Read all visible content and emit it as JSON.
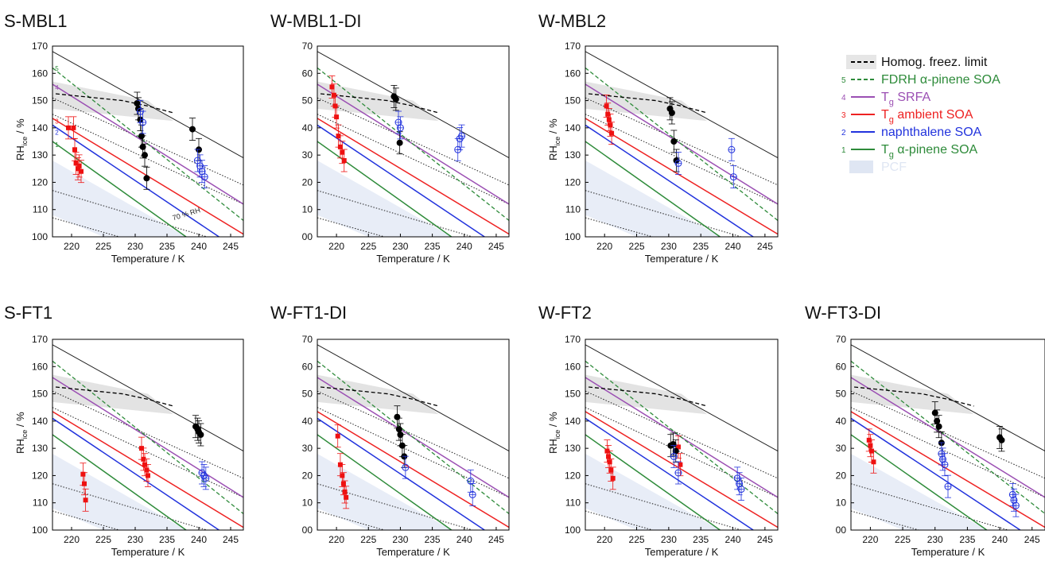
{
  "chart_data": [
    {
      "type": "scatter",
      "panel_title": "S-MBL1",
      "y_tick_labels": [
        "100",
        "110",
        "120",
        "130",
        "140",
        "150",
        "160",
        "170"
      ],
      "xlabel": "Temperature / K",
      "ylabel": "RH_ice / %",
      "xlim": [
        217,
        247
      ],
      "ylim": [
        100,
        170
      ],
      "x_ticks": [
        220,
        225,
        230,
        235,
        240,
        245
      ],
      "annotation": "70 % RH",
      "series": [
        {
          "name": "ambient SOA",
          "x": [
            219.5,
            220.3,
            220.5,
            220.7,
            221.0,
            221.2,
            221.5
          ],
          "y": [
            140,
            140,
            132,
            127,
            125,
            126,
            124
          ]
        },
        {
          "name": "black",
          "x": [
            230.3,
            230.5,
            230.8,
            231.0,
            231.2,
            231.5,
            231.8,
            239.0,
            240.0
          ],
          "y": [
            149,
            147,
            143,
            137,
            133,
            130,
            121.5,
            139.5,
            132
          ]
        },
        {
          "name": "naphthalene SOA",
          "x": [
            230.8,
            231.2,
            239.8,
            240.2,
            240.5,
            240.9
          ],
          "y": [
            146,
            142,
            128,
            126,
            124,
            122
          ]
        }
      ]
    },
    {
      "type": "scatter",
      "panel_title": "W-MBL1-DI",
      "y_tick_labels": [
        "00",
        "10",
        "20",
        "30",
        "40",
        "50",
        "60",
        "70"
      ],
      "xlabel": "Temperature / K",
      "ylabel": "",
      "xlim": [
        217,
        247
      ],
      "ylim": [
        100,
        170
      ],
      "x_ticks": [
        220,
        225,
        230,
        235,
        240,
        245
      ],
      "annotation": "",
      "series": [
        {
          "name": "ambient SOA",
          "x": [
            219.3,
            219.6,
            219.8,
            220.0,
            220.3,
            220.6,
            220.9,
            221.2
          ],
          "y": [
            155,
            152,
            148,
            144,
            137,
            133,
            131,
            128
          ]
        },
        {
          "name": "black",
          "x": [
            229.0,
            229.3,
            229.9
          ],
          "y": [
            151.5,
            150.5,
            134.5
          ]
        },
        {
          "name": "naphthalene SOA",
          "x": [
            229.7,
            230.0,
            239.0,
            239.3,
            239.6
          ],
          "y": [
            142,
            140,
            132,
            136,
            137
          ]
        }
      ]
    },
    {
      "type": "scatter",
      "panel_title": "W-MBL2",
      "y_tick_labels": [
        "100",
        "110",
        "120",
        "130",
        "140",
        "150",
        "160",
        "170"
      ],
      "xlabel": "Temperature / K",
      "ylabel": "RH_ice / %",
      "xlim": [
        217,
        247
      ],
      "ylim": [
        100,
        170
      ],
      "x_ticks": [
        220,
        225,
        230,
        235,
        240,
        245
      ],
      "annotation": "",
      "series": [
        {
          "name": "ambient SOA",
          "x": [
            220.3,
            220.5,
            220.7,
            220.9,
            221.1
          ],
          "y": [
            148,
            145,
            143,
            141,
            138
          ]
        },
        {
          "name": "black",
          "x": [
            230.2,
            230.5,
            230.8,
            231.2
          ],
          "y": [
            147,
            145.5,
            135,
            128
          ]
        },
        {
          "name": "naphthalene SOA",
          "x": [
            231.5,
            239.8,
            240.1
          ],
          "y": [
            127,
            132,
            122
          ]
        }
      ]
    },
    {
      "type": "scatter",
      "panel_title": "S-FT1",
      "y_tick_labels": [
        "100",
        "110",
        "120",
        "130",
        "140",
        "150",
        "160",
        "170"
      ],
      "xlabel": "Temperature / K",
      "ylabel": "RH_ice / %",
      "xlim": [
        217,
        247
      ],
      "ylim": [
        100,
        170
      ],
      "x_ticks": [
        220,
        225,
        230,
        235,
        240,
        245
      ],
      "annotation": "",
      "series": [
        {
          "name": "ambient SOA",
          "x": [
            221.8,
            222.0,
            222.2,
            231.0,
            231.3,
            231.5,
            231.8,
            232.0
          ],
          "y": [
            120.5,
            117,
            111,
            130,
            126,
            124,
            122,
            120
          ]
        },
        {
          "name": "black",
          "x": [
            239.5,
            239.8,
            240.0,
            240.3
          ],
          "y": [
            138,
            137,
            136,
            135
          ]
        },
        {
          "name": "naphthalene SOA",
          "x": [
            240.5,
            240.8,
            241.1
          ],
          "y": [
            121,
            120,
            119
          ]
        }
      ]
    },
    {
      "type": "scatter",
      "panel_title": "W-FT1-DI",
      "y_tick_labels": [
        "00",
        "10",
        "20",
        "30",
        "40",
        "50",
        "60",
        "70"
      ],
      "xlabel": "Temperature / K",
      "ylabel": "",
      "xlim": [
        217,
        247
      ],
      "ylim": [
        100,
        170
      ],
      "x_ticks": [
        220,
        225,
        230,
        235,
        240,
        245
      ],
      "annotation": "",
      "series": [
        {
          "name": "ambient SOA",
          "x": [
            220.2,
            220.6,
            220.9,
            221.1,
            221.3,
            221.5
          ],
          "y": [
            134.5,
            124,
            120,
            117,
            114,
            112
          ]
        },
        {
          "name": "black",
          "x": [
            229.5,
            229.8,
            230.0,
            230.3,
            230.6
          ],
          "y": [
            141.5,
            137,
            135,
            131,
            127
          ]
        },
        {
          "name": "naphthalene SOA",
          "x": [
            230.8,
            241.0,
            241.3
          ],
          "y": [
            123,
            118,
            113
          ]
        }
      ]
    },
    {
      "type": "scatter",
      "panel_title": "W-FT2",
      "y_tick_labels": [
        "100",
        "110",
        "120",
        "130",
        "140",
        "150",
        "160",
        "170"
      ],
      "xlabel": "Temperature / K",
      "ylabel": "RH_ice / %",
      "xlim": [
        217,
        247
      ],
      "ylim": [
        100,
        170
      ],
      "x_ticks": [
        220,
        225,
        230,
        235,
        240,
        245
      ],
      "annotation": "",
      "series": [
        {
          "name": "ambient SOA",
          "x": [
            220.4,
            220.6,
            220.8,
            221.0,
            221.3,
            231.5,
            231.8
          ],
          "y": [
            129,
            127,
            125,
            122,
            119,
            130.5,
            124
          ]
        },
        {
          "name": "black",
          "x": [
            230.3,
            230.7,
            231.1
          ],
          "y": [
            131,
            131.5,
            129
          ]
        },
        {
          "name": "naphthalene SOA",
          "x": [
            230.8,
            231.5,
            240.7,
            241.0,
            241.3
          ],
          "y": [
            127,
            121,
            119,
            117,
            115
          ]
        }
      ]
    },
    {
      "type": "scatter",
      "panel_title": "W-FT3-DI",
      "y_tick_labels": [
        "00",
        "10",
        "20",
        "30",
        "40",
        "50",
        "60",
        "70"
      ],
      "xlabel": "Temperature / K",
      "ylabel": "",
      "xlim": [
        217,
        247
      ],
      "ylim": [
        100,
        170
      ],
      "x_ticks": [
        220,
        225,
        230,
        235,
        240,
        245
      ],
      "annotation": "",
      "series": [
        {
          "name": "ambient SOA",
          "x": [
            219.8,
            220.0,
            220.2,
            220.5
          ],
          "y": [
            133,
            131,
            129,
            125
          ]
        },
        {
          "name": "black",
          "x": [
            230.0,
            230.3,
            230.6,
            231.0,
            240.0,
            240.3
          ],
          "y": [
            143,
            140,
            138,
            132,
            134,
            133
          ]
        },
        {
          "name": "naphthalene SOA",
          "x": [
            231.0,
            231.2,
            231.5,
            232.0,
            242.0,
            242.2,
            242.5
          ],
          "y": [
            128,
            126,
            124,
            116,
            113,
            111,
            109
          ]
        }
      ]
    }
  ],
  "legend": {
    "items": [
      {
        "num": "",
        "text": "Homog. freez. limit",
        "sub": "",
        "after": "",
        "color": "#000000",
        "style": "dashed"
      },
      {
        "num": "5",
        "text": "FDRH α-pinene SOA",
        "sub": "",
        "after": "",
        "color": "#2e8b3a",
        "style": "dashed"
      },
      {
        "num": "4",
        "text": "T",
        "sub": "g",
        "after": " SRFA",
        "color": "#9b4fb3",
        "style": "solid"
      },
      {
        "num": "3",
        "text": "T",
        "sub": "g",
        "after": " ambient SOA",
        "color": "#ee2222",
        "style": "solid"
      },
      {
        "num": "2",
        "text": "naphthalene SOA",
        "sub": "",
        "after": "",
        "color": "#2233dd",
        "style": "solid"
      },
      {
        "num": "1",
        "text": "T",
        "sub": "g",
        "after": " α-pinene SOA",
        "color": "#2e8b3a",
        "style": "solid"
      },
      {
        "num": "",
        "text": "PCF",
        "sub": "",
        "after": "",
        "color": "#dfe6f3",
        "style": "box"
      }
    ]
  },
  "colors": {
    "ambient": "#ee1111",
    "black": "#000000",
    "naphthalene": "#2233dd",
    "homog": "#000000",
    "fdrh": "#2e8b3a",
    "srfa": "#9b4fb3",
    "tg_ambient": "#ee2222",
    "tg_naph": "#2233dd",
    "tg_apinene": "#2e8b3a",
    "pcf": "#e8edf7",
    "homog_band": "#e3e3e3"
  }
}
